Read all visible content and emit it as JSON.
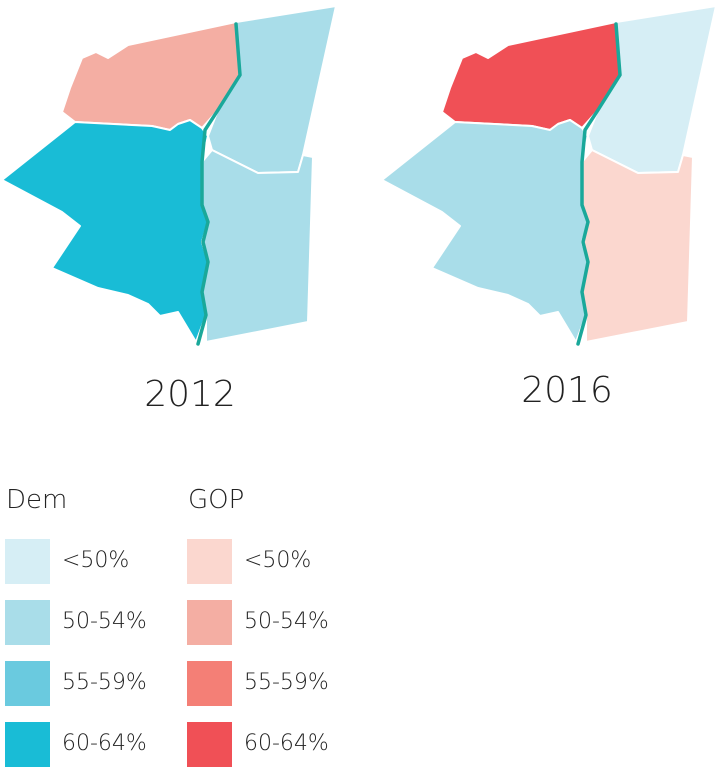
{
  "maps": [
    {
      "year": "2012",
      "regions": {
        "northwest": {
          "party": "GOP",
          "bucket": "50-54%",
          "color": "#f4aea3"
        },
        "northeast": {
          "party": "Dem",
          "bucket": "50-54%",
          "color": "#a9dde9"
        },
        "west": {
          "party": "Dem",
          "bucket": "60-64%",
          "color": "#19bcd6"
        },
        "southeast": {
          "party": "Dem",
          "bucket": "50-54%",
          "color": "#a9dde9"
        }
      }
    },
    {
      "year": "2016",
      "regions": {
        "northwest": {
          "party": "GOP",
          "bucket": "60-64%",
          "color": "#f05056"
        },
        "northeast": {
          "party": "Dem",
          "bucket": "<50%",
          "color": "#d6eef5"
        },
        "west": {
          "party": "Dem",
          "bucket": "50-54%",
          "color": "#a9dde9"
        },
        "southeast": {
          "party": "GOP",
          "bucket": "<50%",
          "color": "#fbd7cf"
        }
      }
    }
  ],
  "river_color": "#1aa89a",
  "legend": {
    "dem": {
      "title": "Dem",
      "items": [
        {
          "label": "<50%",
          "color": "#d6eef5"
        },
        {
          "label": "50-54%",
          "color": "#a9dde9"
        },
        {
          "label": "55-59%",
          "color": "#6acadf"
        },
        {
          "label": "60-64%",
          "color": "#19bcd6"
        }
      ]
    },
    "gop": {
      "title": "GOP",
      "items": [
        {
          "label": "<50%",
          "color": "#fbd7cf"
        },
        {
          "label": "50-54%",
          "color": "#f4aea3"
        },
        {
          "label": "55-59%",
          "color": "#f47f76"
        },
        {
          "label": "60-64%",
          "color": "#f05056"
        }
      ]
    }
  }
}
